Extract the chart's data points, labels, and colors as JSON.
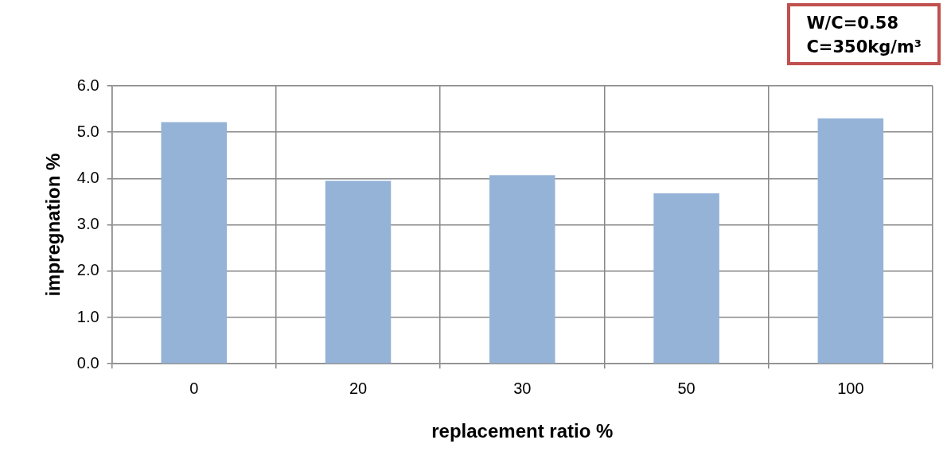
{
  "chart_data": {
    "type": "bar",
    "xlabel": "replacement ratio %",
    "ylabel": "impregnation %",
    "categories": [
      "0",
      "20",
      "30",
      "50",
      "100"
    ],
    "values": [
      5.22,
      3.95,
      4.07,
      3.68,
      5.3
    ],
    "color": "#95b3d7",
    "ylim": [
      0,
      6
    ],
    "yticks": [
      {
        "value": 0,
        "label": "0.0"
      },
      {
        "value": 1,
        "label": "1.0"
      },
      {
        "value": 2,
        "label": "2.0"
      },
      {
        "value": 3,
        "label": "3.0"
      },
      {
        "value": 4,
        "label": "4.0"
      },
      {
        "value": 5,
        "label": "5.0"
      },
      {
        "value": 6,
        "label": "6.0"
      }
    ],
    "grid": true,
    "annotations": [
      "W/C=0.58",
      "C=350kg/m³"
    ]
  }
}
